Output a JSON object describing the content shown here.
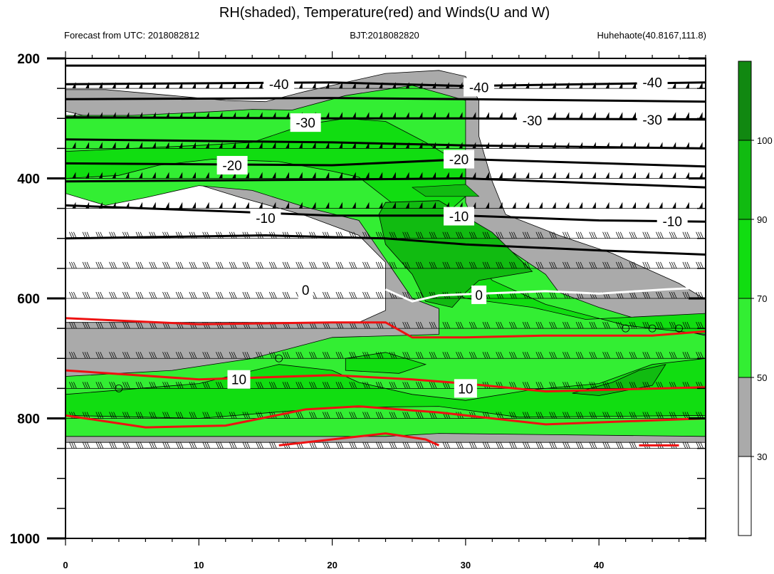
{
  "chart_data": {
    "type": "heatmap",
    "title": "RH(shaded), Temperature(red) and Winds(U and W)",
    "subtitles": {
      "left": "Forecast from UTC: 2018082812",
      "center": "BJT:2018082820",
      "right": "Huhehaote(40.8167,111.8)"
    },
    "xlabel": "",
    "ylabel": "",
    "x_ticks": [
      0,
      10,
      20,
      30,
      40
    ],
    "y_ticks": [
      200,
      400,
      600,
      800,
      1000
    ],
    "xlim": [
      0,
      48
    ],
    "ylim": [
      200,
      1000
    ],
    "colorbar": {
      "levels": [
        30,
        50,
        70,
        90,
        100
      ],
      "colors": [
        "#ffffff",
        "#aaaaaa",
        "#33ee33",
        "#11dd11",
        "#11bb11",
        "#118811"
      ]
    },
    "temperature_contours": {
      "black_levels": [
        -40,
        -30,
        -20,
        -10
      ],
      "zero_level": 0,
      "red_levels": [
        10
      ],
      "labels": [
        {
          "text": "-40",
          "x": 16,
          "p": 243
        },
        {
          "text": "-40",
          "x": 31,
          "p": 248
        },
        {
          "text": "-40",
          "x": 44,
          "p": 240
        },
        {
          "text": "-30",
          "x": 18,
          "p": 307
        },
        {
          "text": "-30",
          "x": 35,
          "p": 303
        },
        {
          "text": "-30",
          "x": 44,
          "p": 302
        },
        {
          "text": "-20",
          "x": 12.5,
          "p": 378
        },
        {
          "text": "-20",
          "x": 29.5,
          "p": 368
        },
        {
          "text": "-10",
          "x": 15,
          "p": 466
        },
        {
          "text": "-10",
          "x": 29.5,
          "p": 463
        },
        {
          "text": "-10",
          "x": 45.5,
          "p": 471
        },
        {
          "text": "0",
          "x": 18,
          "p": 586
        },
        {
          "text": "0",
          "x": 31,
          "p": 594
        },
        {
          "text": "10",
          "x": 13,
          "p": 735
        },
        {
          "text": "10",
          "x": 30,
          "p": 750
        }
      ]
    },
    "station_circles": [
      {
        "x": 16,
        "p": 700
      },
      {
        "x": 4,
        "p": 750
      },
      {
        "x": 42,
        "p": 650
      },
      {
        "x": 44,
        "p": 650
      },
      {
        "x": 46,
        "p": 650
      }
    ],
    "legend": "colorbar-right",
    "grid": false
  }
}
